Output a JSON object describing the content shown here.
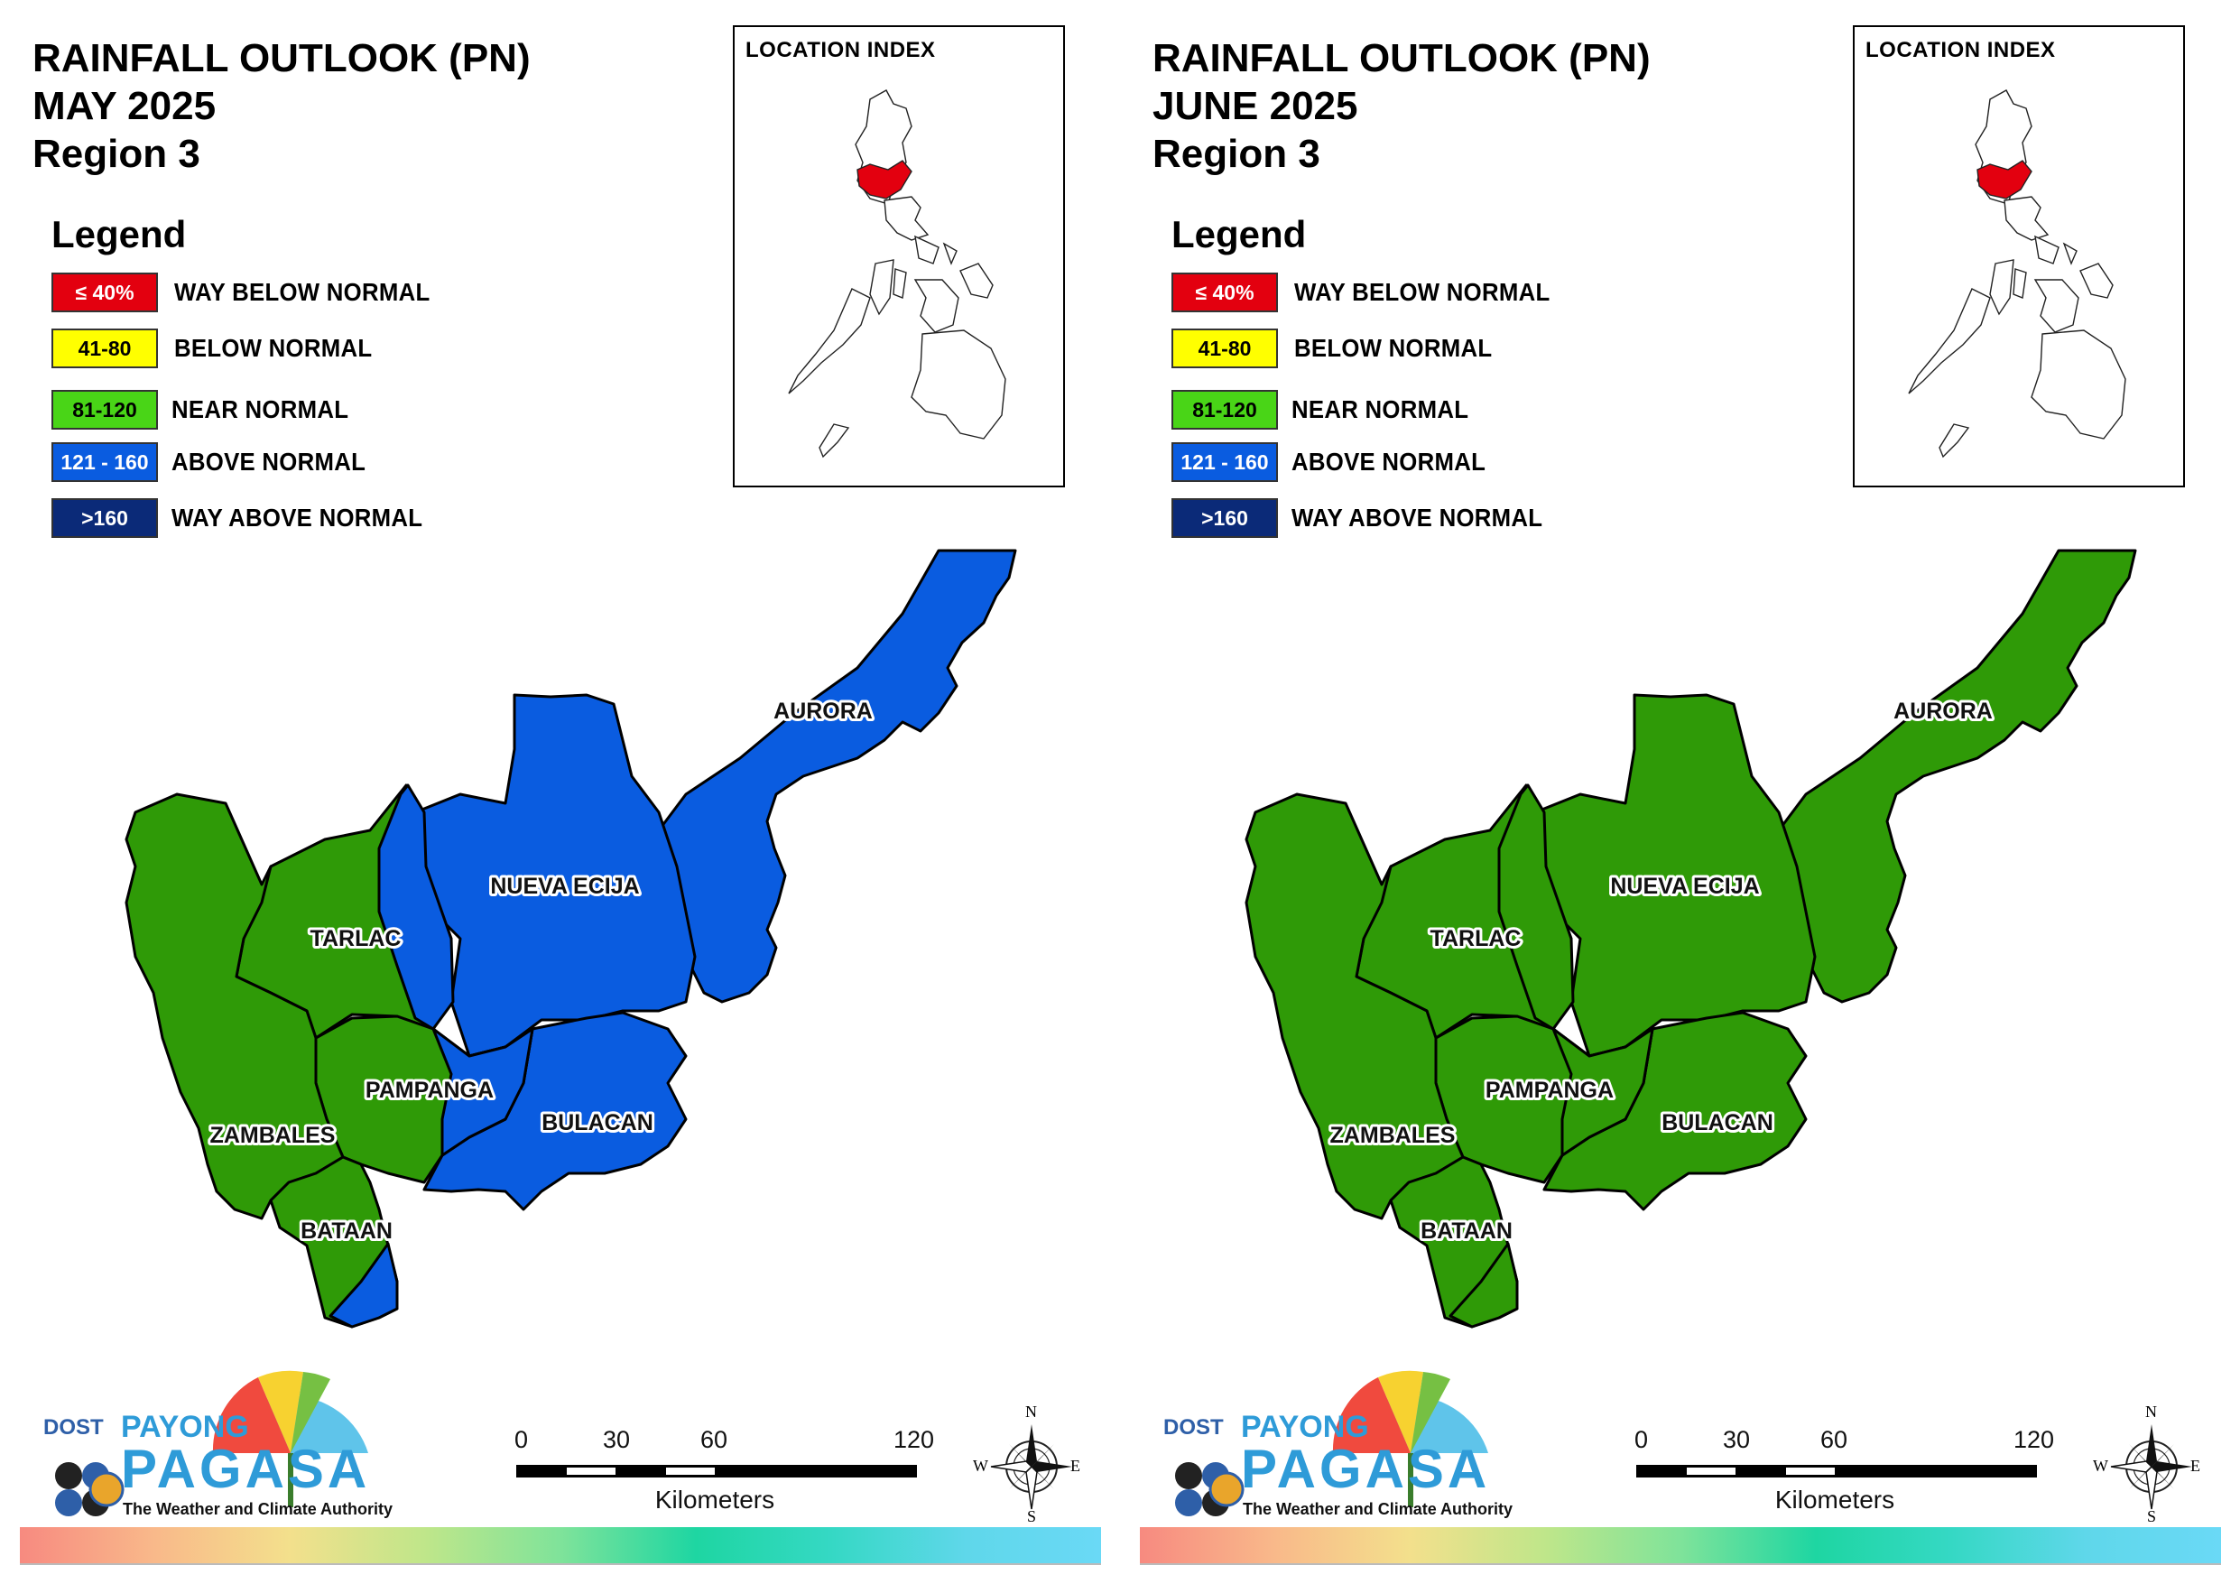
{
  "panels": [
    {
      "title_line1": "RAINFALL OUTLOOK (PN)",
      "title_line2": "MAY 2025",
      "title_line3": "Region 3",
      "province_colors": {
        "aurora": "#0a5ce0",
        "nueva_ecija": "#0a5ce0",
        "bulacan": "#0a5ce0",
        "tarlac": "#2f9a07",
        "pampanga": "#2f9a07",
        "zambales": "#2f9a07",
        "bataan": "#2f9a07",
        "tarlac_east": "#0a5ce0",
        "pampanga_east": "#0a5ce0",
        "bataan_south": "#0a5ce0"
      }
    },
    {
      "title_line1": "RAINFALL OUTLOOK (PN)",
      "title_line2": "JUNE 2025",
      "title_line3": "Region 3",
      "province_colors": {
        "aurora": "#2f9a07",
        "nueva_ecija": "#2f9a07",
        "bulacan": "#2f9a07",
        "tarlac": "#2f9a07",
        "pampanga": "#2f9a07",
        "zambales": "#2f9a07",
        "bataan": "#2f9a07",
        "tarlac_east": "#2f9a07",
        "pampanga_east": "#2f9a07",
        "bataan_south": "#2f9a07"
      }
    }
  ],
  "legend": {
    "title": "Legend",
    "items": [
      {
        "range": "≤ 40%",
        "label": "WAY BELOW NORMAL",
        "color": "#e3000f",
        "text_color": "#ffffff"
      },
      {
        "range": "41-80",
        "label": "BELOW NORMAL",
        "color": "#ffff00",
        "text_color": "#000000"
      },
      {
        "range": "81-120",
        "label": "NEAR NORMAL",
        "color": "#49d517",
        "text_color": "#000000"
      },
      {
        "range": "121 - 160",
        "label": "ABOVE NORMAL",
        "color": "#0a5ce0",
        "text_color": "#ffffff"
      },
      {
        "range": ">160",
        "label": "WAY ABOVE NORMAL",
        "color": "#0b2a78",
        "text_color": "#ffffff"
      }
    ]
  },
  "inset": {
    "title": "LOCATION INDEX",
    "highlight_color": "#e3000f"
  },
  "provinces": {
    "aurora": "AURORA",
    "nueva_ecija": "NUEVA ECIJA",
    "tarlac": "TARLAC",
    "pampanga": "PAMPANGA",
    "bulacan": "BULACAN",
    "zambales": "ZAMBALES",
    "bataan": "BATAAN"
  },
  "logo": {
    "dost": "DOST",
    "payong": "PAYONG",
    "pagasa": "PAGASA",
    "tagline": "The Weather and Climate Authority"
  },
  "scale": {
    "ticks": [
      "0",
      "30",
      "60",
      "120"
    ],
    "unit": "Kilometers"
  },
  "compass": {
    "n": "N",
    "s": "S",
    "e": "E",
    "w": "W"
  }
}
